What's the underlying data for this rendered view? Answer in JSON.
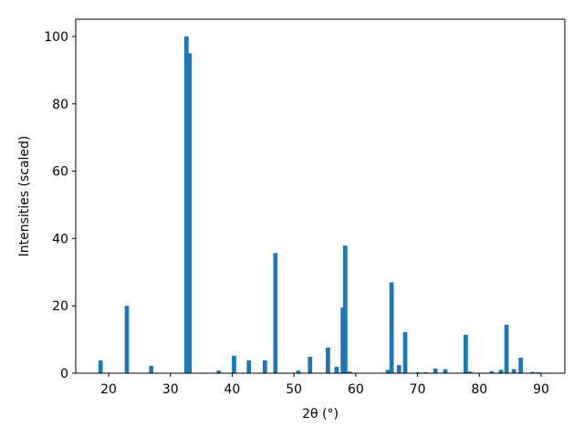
{
  "chart_data": {
    "type": "bar",
    "xlabel": "2θ (°)",
    "ylabel": "Intensities (scaled)",
    "x": [
      18.7,
      22.95,
      26.9,
      32.6,
      33.1,
      37.8,
      40.3,
      42.7,
      45.3,
      47.0,
      50.7,
      52.6,
      55.5,
      56.9,
      57.9,
      58.3,
      59.0,
      65.2,
      65.8,
      67.0,
      68.0,
      70.1,
      71.3,
      72.9,
      74.5,
      77.8,
      78.5,
      82.0,
      83.5,
      84.4,
      85.6,
      86.7,
      88.6,
      89.5
    ],
    "values": [
      3.8,
      20,
      2.2,
      100,
      95,
      0.8,
      5.2,
      3.8,
      3.8,
      35.7,
      0.8,
      4.9,
      7.6,
      1.9,
      19.5,
      37.9,
      0.5,
      1.0,
      27,
      2.4,
      12.2,
      0.3,
      0.3,
      1.4,
      1.2,
      11.4,
      0.5,
      0.6,
      1.0,
      14.4,
      1.2,
      4.6,
      0.4,
      0.3
    ],
    "color": "#1f77b4",
    "xlim": [
      14.68,
      93.84
    ],
    "ylim": [
      0,
      105.15
    ],
    "xticks": [
      20,
      30,
      40,
      50,
      60,
      70,
      80,
      90
    ],
    "yticks": [
      0,
      20,
      40,
      60,
      80,
      100
    ]
  }
}
